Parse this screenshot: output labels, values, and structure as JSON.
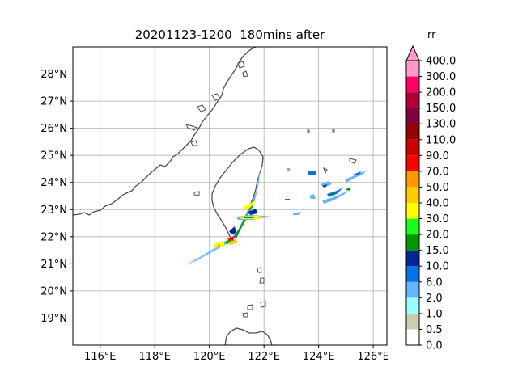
{
  "title": "20201123-1200  180mins after",
  "map": {
    "lon_ticks": [
      "116°E",
      "118°E",
      "120°E",
      "122°E",
      "124°E",
      "126°E"
    ],
    "lat_ticks": [
      "19°N",
      "20°N",
      "21°N",
      "22°N",
      "23°N",
      "24°N",
      "25°N",
      "26°N",
      "27°N",
      "28°N"
    ],
    "extent": {
      "lon": [
        115.0,
        126.5
      ],
      "lat": [
        18.0,
        29.0
      ]
    },
    "grid": true,
    "coastline_color": "#4d4d4d"
  },
  "colorbar": {
    "unit": "rr",
    "levels": [
      "0.0",
      "0.5",
      "1.0",
      "2.0",
      "6.0",
      "10.0",
      "15.0",
      "20.0",
      "30.0",
      "40.0",
      "50.0",
      "70.0",
      "90.0",
      "110.0",
      "130.0",
      "150.0",
      "200.0",
      "300.0",
      "400.0"
    ],
    "colors": [
      "#ffffff",
      "#ccccb3",
      "#99ffff",
      "#66b3ff",
      "#0073e6",
      "#002699",
      "#009900",
      "#1aff1a",
      "#ffff00",
      "#ffcc00",
      "#ff9900",
      "#ff0000",
      "#cc0000",
      "#990000",
      "#800040",
      "#b3003b",
      "#ff0066",
      "#ff99cc"
    ],
    "extend_color": "#ff99cc"
  }
}
